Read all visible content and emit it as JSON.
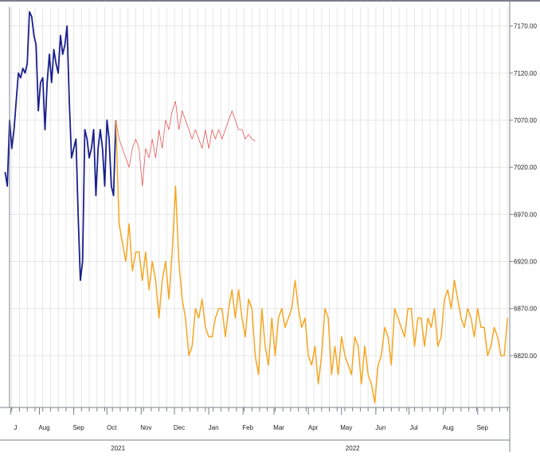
{
  "colors": {
    "frame": "#7a8088",
    "grid": "#e6e6e6",
    "history": "#1a1f8c",
    "projection": "#f6a623",
    "alt_projection": "#e45656"
  },
  "chart_data": {
    "type": "line",
    "title": "",
    "xlabel": "",
    "ylabel": "",
    "grid": true,
    "legend": "none",
    "xlim": [
      "2021-07-05",
      "2022-09-30"
    ],
    "ylim": [
      6765,
      7190
    ],
    "y_axis_position": "right",
    "y_ticks": [
      {
        "value": 7170,
        "label": "7170.00"
      },
      {
        "value": 7120,
        "label": "7120.00"
      },
      {
        "value": 7070,
        "label": "7070.00"
      },
      {
        "value": 7020,
        "label": "7020.00"
      },
      {
        "value": 6970,
        "label": "6970.00"
      },
      {
        "value": 6920,
        "label": "6920.00"
      },
      {
        "value": 6870,
        "label": "6870.00"
      },
      {
        "value": 6820,
        "label": "6820.00"
      }
    ],
    "month_ticks": [
      {
        "date": "2021-07-06",
        "label": "J"
      },
      {
        "date": "2021-08-01",
        "label": "Aug"
      },
      {
        "date": "2021-09-01",
        "label": "Sep"
      },
      {
        "date": "2021-10-01",
        "label": "Oct"
      },
      {
        "date": "2021-11-01",
        "label": "Nov"
      },
      {
        "date": "2021-12-01",
        "label": "Dec"
      },
      {
        "date": "2022-01-01",
        "label": "Jan"
      },
      {
        "date": "2022-02-01",
        "label": "Feb"
      },
      {
        "date": "2022-03-01",
        "label": "Mar"
      },
      {
        "date": "2022-04-01",
        "label": "Apr"
      },
      {
        "date": "2022-05-01",
        "label": "May"
      },
      {
        "date": "2022-06-01",
        "label": "Jun"
      },
      {
        "date": "2022-07-01",
        "label": "Jul"
      },
      {
        "date": "2022-08-01",
        "label": "Aug"
      },
      {
        "date": "2022-09-01",
        "label": "Sep"
      }
    ],
    "year_labels": [
      {
        "date": "2021-10-11",
        "label": "2021"
      },
      {
        "date": "2022-05-11",
        "label": "2022"
      }
    ],
    "series": [
      {
        "key": "history",
        "x": [
          "2021-07-01",
          "2021-07-03",
          "2021-07-05",
          "2021-07-07",
          "2021-07-09",
          "2021-07-11",
          "2021-07-13",
          "2021-07-15",
          "2021-07-17",
          "2021-07-19",
          "2021-07-21",
          "2021-07-23",
          "2021-07-25",
          "2021-07-27",
          "2021-07-29",
          "2021-07-31",
          "2021-08-02",
          "2021-08-04",
          "2021-08-06",
          "2021-08-08",
          "2021-08-10",
          "2021-08-12",
          "2021-08-14",
          "2021-08-16",
          "2021-08-18",
          "2021-08-20",
          "2021-08-22",
          "2021-08-24",
          "2021-08-26",
          "2021-08-28",
          "2021-08-30",
          "2021-09-01",
          "2021-09-03",
          "2021-09-05",
          "2021-09-07",
          "2021-09-09",
          "2021-09-11",
          "2021-09-13",
          "2021-09-15",
          "2021-09-17",
          "2021-09-19",
          "2021-09-21",
          "2021-09-23",
          "2021-09-25",
          "2021-09-27",
          "2021-09-29",
          "2021-10-01",
          "2021-10-03",
          "2021-10-05",
          "2021-10-07",
          "2021-10-09"
        ],
        "values": [
          7015,
          7000,
          7070,
          7040,
          7060,
          7090,
          7120,
          7115,
          7125,
          7120,
          7130,
          7185,
          7180,
          7160,
          7150,
          7080,
          7110,
          7115,
          7060,
          7110,
          7140,
          7110,
          7145,
          7130,
          7120,
          7160,
          7140,
          7150,
          7170,
          7090,
          7030,
          7040,
          7050,
          6970,
          6900,
          6920,
          7060,
          7050,
          7030,
          7040,
          7060,
          6990,
          7040,
          7060,
          7040,
          7000,
          7070,
          7050,
          7000,
          6990,
          7070
        ]
      },
      {
        "key": "projection",
        "x": [
          "2021-10-09",
          "2021-10-12",
          "2021-10-15",
          "2021-10-18",
          "2021-10-21",
          "2021-10-24",
          "2021-10-27",
          "2021-10-30",
          "2021-11-02",
          "2021-11-05",
          "2021-11-08",
          "2021-11-11",
          "2021-11-14",
          "2021-11-17",
          "2021-11-20",
          "2021-11-23",
          "2021-11-26",
          "2021-11-29",
          "2021-12-02",
          "2021-12-05",
          "2021-12-08",
          "2021-12-11",
          "2021-12-14",
          "2021-12-17",
          "2021-12-20",
          "2021-12-23",
          "2021-12-26",
          "2021-12-29",
          "2022-01-01",
          "2022-01-04",
          "2022-01-07",
          "2022-01-10",
          "2022-01-13",
          "2022-01-16",
          "2022-01-19",
          "2022-01-22",
          "2022-01-25",
          "2022-01-28",
          "2022-01-31",
          "2022-02-03",
          "2022-02-06",
          "2022-02-09",
          "2022-02-12",
          "2022-02-15",
          "2022-02-18",
          "2022-02-21",
          "2022-02-24",
          "2022-02-27",
          "2022-03-02",
          "2022-03-05",
          "2022-03-08",
          "2022-03-11",
          "2022-03-14",
          "2022-03-17",
          "2022-03-20",
          "2022-03-23",
          "2022-03-26",
          "2022-03-29",
          "2022-04-01",
          "2022-04-04",
          "2022-04-07",
          "2022-04-10",
          "2022-04-13",
          "2022-04-16",
          "2022-04-19",
          "2022-04-22",
          "2022-04-25",
          "2022-04-28",
          "2022-05-01",
          "2022-05-04",
          "2022-05-07",
          "2022-05-10",
          "2022-05-13",
          "2022-05-16",
          "2022-05-19",
          "2022-05-22",
          "2022-05-25",
          "2022-05-28",
          "2022-05-31",
          "2022-06-03",
          "2022-06-06",
          "2022-06-09",
          "2022-06-12",
          "2022-06-15",
          "2022-06-18",
          "2022-06-21",
          "2022-06-24",
          "2022-06-27",
          "2022-06-30",
          "2022-07-03",
          "2022-07-06",
          "2022-07-09",
          "2022-07-12",
          "2022-07-15",
          "2022-07-18",
          "2022-07-21",
          "2022-07-24",
          "2022-07-27",
          "2022-07-30",
          "2022-08-02",
          "2022-08-05",
          "2022-08-08",
          "2022-08-11",
          "2022-08-14",
          "2022-08-17",
          "2022-08-20",
          "2022-08-23",
          "2022-08-26",
          "2022-08-29",
          "2022-09-01",
          "2022-09-04",
          "2022-09-07",
          "2022-09-10",
          "2022-09-13",
          "2022-09-16",
          "2022-09-19",
          "2022-09-22",
          "2022-09-25",
          "2022-09-28"
        ],
        "values": [
          7070,
          6960,
          6940,
          6920,
          6960,
          6910,
          6930,
          6930,
          6900,
          6930,
          6890,
          6920,
          6900,
          6860,
          6900,
          6920,
          6880,
          6930,
          7000,
          6920,
          6880,
          6860,
          6820,
          6830,
          6870,
          6860,
          6880,
          6850,
          6840,
          6840,
          6860,
          6870,
          6870,
          6840,
          6870,
          6890,
          6860,
          6890,
          6860,
          6840,
          6880,
          6870,
          6820,
          6800,
          6870,
          6830,
          6810,
          6860,
          6820,
          6860,
          6870,
          6850,
          6860,
          6870,
          6900,
          6870,
          6850,
          6860,
          6820,
          6810,
          6830,
          6790,
          6820,
          6870,
          6860,
          6800,
          6830,
          6800,
          6840,
          6820,
          6810,
          6800,
          6840,
          6830,
          6790,
          6830,
          6800,
          6790,
          6770,
          6810,
          6820,
          6850,
          6840,
          6810,
          6870,
          6860,
          6850,
          6840,
          6870,
          6870,
          6830,
          6860,
          6860,
          6830,
          6860,
          6850,
          6870,
          6830,
          6840,
          6880,
          6890,
          6870,
          6900,
          6880,
          6860,
          6850,
          6870,
          6860,
          6840,
          6870,
          6850,
          6850,
          6820,
          6830,
          6850,
          6840,
          6820,
          6820,
          6860
        ]
      },
      {
        "key": "alt_projection",
        "x": [
          "2021-10-09",
          "2021-10-12",
          "2021-10-15",
          "2021-10-18",
          "2021-10-21",
          "2021-10-24",
          "2021-10-27",
          "2021-10-30",
          "2021-11-02",
          "2021-11-05",
          "2021-11-08",
          "2021-11-11",
          "2021-11-14",
          "2021-11-17",
          "2021-11-20",
          "2021-11-23",
          "2021-11-26",
          "2021-11-29",
          "2021-12-02",
          "2021-12-05",
          "2021-12-08",
          "2021-12-11",
          "2021-12-14",
          "2021-12-17",
          "2021-12-20",
          "2021-12-23",
          "2021-12-26",
          "2021-12-29",
          "2022-01-01",
          "2022-01-04",
          "2022-01-07",
          "2022-01-10",
          "2022-01-13",
          "2022-01-16",
          "2022-01-19",
          "2022-01-22",
          "2022-01-25",
          "2022-01-28",
          "2022-01-31",
          "2022-02-03",
          "2022-02-06",
          "2022-02-09",
          "2022-02-12"
        ],
        "values": [
          7070,
          7050,
          7040,
          7030,
          7020,
          7040,
          7050,
          7040,
          7000,
          7040,
          7030,
          7050,
          7030,
          7060,
          7040,
          7070,
          7060,
          7080,
          7090,
          7060,
          7080,
          7070,
          7060,
          7050,
          7060,
          7050,
          7040,
          7060,
          7040,
          7060,
          7050,
          7060,
          7050,
          7060,
          7070,
          7080,
          7070,
          7060,
          7060,
          7050,
          7055,
          7050,
          7048
        ]
      }
    ]
  }
}
